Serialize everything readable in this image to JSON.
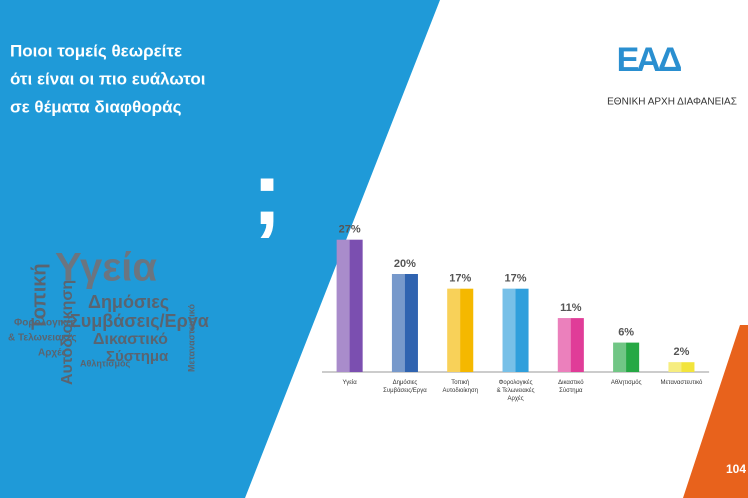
{
  "header": {
    "title_lines": [
      "Ποιοι τομείς θεωρείτε",
      "ότι είναι οι πιο ευάλωτοι",
      "σε θέματα διαφθοράς"
    ],
    "question_mark": ";"
  },
  "logo": {
    "mark": "ΕΑΔ",
    "name": "ΕΘΝΙΚΗ ΑΡΧΗ ΔΙΑΦΑΝΕΙΑΣ"
  },
  "word_cloud": [
    "Υγεία",
    "Δημόσιες",
    "Συμβάσεις/Εργα",
    "Δικαστικό",
    "Σύστημα",
    "Τοπική",
    "Αυτοδιοίκηση",
    "Φορολογικές",
    "& Τελωνειακές",
    "Αρχές",
    "Αθλητισμός",
    "Μεταναστευτικό"
  ],
  "corner_badge": "104",
  "chart_data": {
    "type": "bar",
    "categories": [
      "Υγεία",
      "Δημόσιες\nΣυμβάσεις/Εργα",
      "Τοπική\nΑυτοδιοίκηση",
      "Φορολογικές\n& Τελωνειακές\nΑρχές",
      "Δικαστικό\nΣύστημα",
      "Αθλητισμός",
      "Μεταναστευτικό"
    ],
    "values": [
      27,
      20,
      17,
      17,
      11,
      6,
      2
    ],
    "value_labels": [
      "27%",
      "20%",
      "17%",
      "17%",
      "11%",
      "6%",
      "2%"
    ],
    "colors": [
      "#7b4fb0",
      "#2f63b0",
      "#f5b800",
      "#2f9fdc",
      "#e03c98",
      "#26a844",
      "#f2e43c"
    ]
  }
}
